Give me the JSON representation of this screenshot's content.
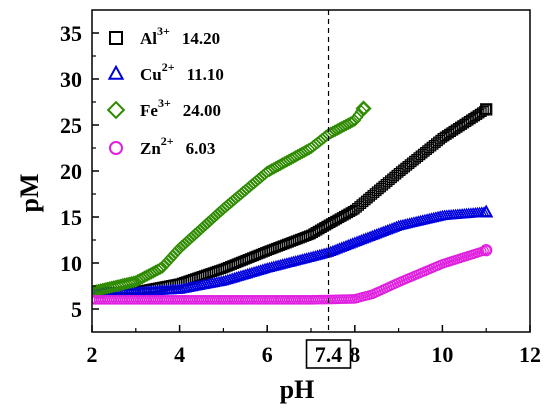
{
  "chart_data": {
    "type": "scatter",
    "xlabel": "pH",
    "ylabel": "pM",
    "xlim": [
      2,
      12
    ],
    "ylim": [
      2.5,
      37.5
    ],
    "xticks": [
      2,
      4,
      6,
      8,
      10,
      12
    ],
    "yticks": [
      5,
      10,
      15,
      20,
      25,
      30,
      35
    ],
    "reference_line": {
      "x": 7.4,
      "label": "7.4",
      "style": "dashed"
    },
    "legend_position": "top-left",
    "series": [
      {
        "ion": "Al",
        "charge": "3+",
        "value": "14.20",
        "marker": "square",
        "color": "#000000",
        "x": [
          2.0,
          3.0,
          4.0,
          5.0,
          6.0,
          7.0,
          7.4,
          8.0,
          9.0,
          10.0,
          11.0
        ],
        "y": [
          6.8,
          6.9,
          7.8,
          9.4,
          11.3,
          13.1,
          14.2,
          15.8,
          19.8,
          23.6,
          26.7
        ]
      },
      {
        "ion": "Cu",
        "charge": "2+",
        "value": "11.10",
        "marker": "triangle",
        "color": "#0000dd",
        "x": [
          2.0,
          3.0,
          4.0,
          5.0,
          6.0,
          7.0,
          7.4,
          8.0,
          9.0,
          10.0,
          11.0
        ],
        "y": [
          6.8,
          6.8,
          7.1,
          8.0,
          9.4,
          10.6,
          11.1,
          12.2,
          14.0,
          15.1,
          15.5
        ]
      },
      {
        "ion": "Fe",
        "charge": "3+",
        "value": "24.00",
        "marker": "diamond",
        "color": "#2e8b00",
        "x": [
          2.0,
          3.0,
          3.6,
          4.0,
          5.0,
          6.0,
          7.0,
          7.4,
          8.0,
          8.2
        ],
        "y": [
          6.9,
          8.0,
          9.5,
          11.6,
          15.9,
          19.9,
          22.5,
          24.0,
          25.5,
          26.8
        ]
      },
      {
        "ion": "Zn",
        "charge": "2+",
        "value": "6.03",
        "marker": "circle",
        "color": "#e020e0",
        "x": [
          2.0,
          3.0,
          4.0,
          5.0,
          6.0,
          7.0,
          7.4,
          8.0,
          8.4,
          9.0,
          10.0,
          11.0
        ],
        "y": [
          6.0,
          6.0,
          6.0,
          6.0,
          6.0,
          6.0,
          6.03,
          6.1,
          6.6,
          7.9,
          9.9,
          11.4
        ]
      }
    ]
  }
}
